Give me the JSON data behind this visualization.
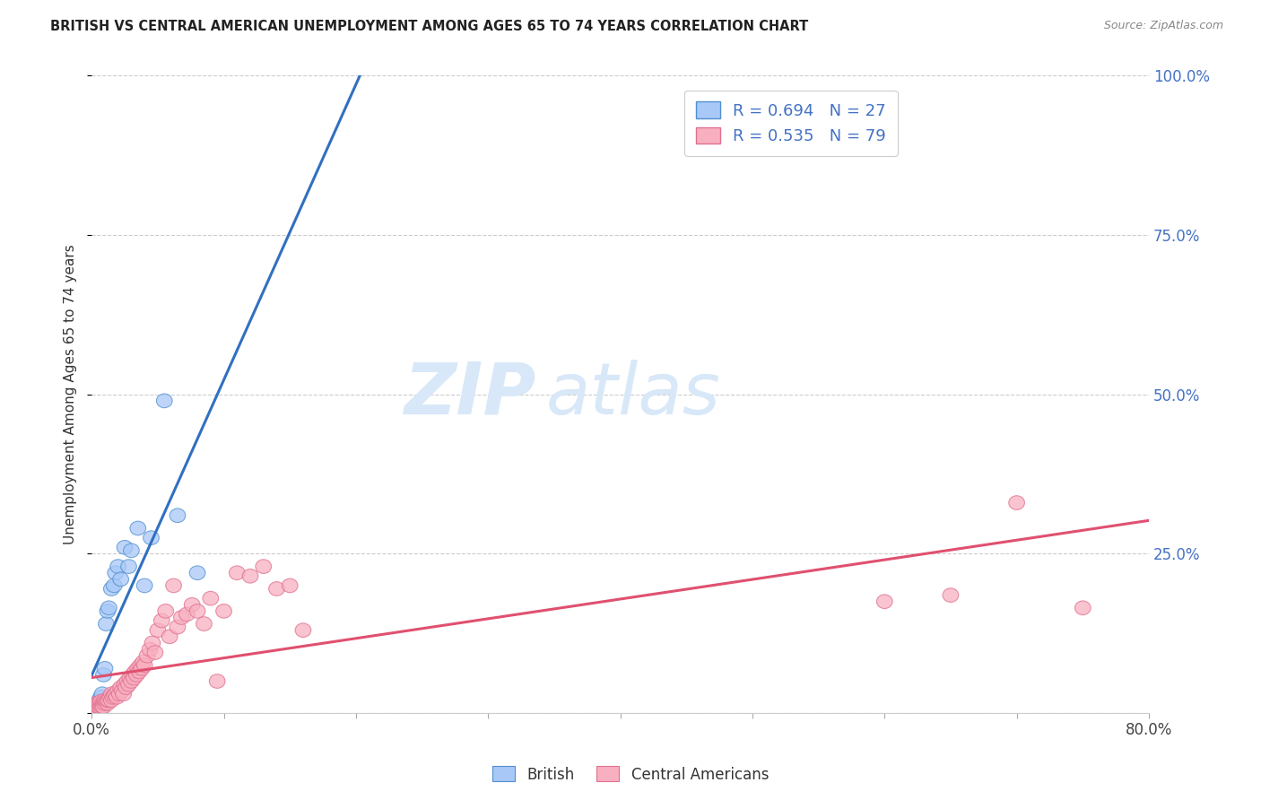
{
  "title": "BRITISH VS CENTRAL AMERICAN UNEMPLOYMENT AMONG AGES 65 TO 74 YEARS CORRELATION CHART",
  "source": "Source: ZipAtlas.com",
  "ylabel": "Unemployment Among Ages 65 to 74 years",
  "xmin": 0.0,
  "xmax": 0.8,
  "ymin": 0.0,
  "ymax": 1.0,
  "british_color": "#a8c8f8",
  "british_edge_color": "#5090d0",
  "ca_color": "#f8b0c0",
  "ca_edge_color": "#e07090",
  "regression_blue": "#3070c0",
  "regression_pink": "#e05070",
  "british_R": 0.694,
  "british_N": 27,
  "ca_R": 0.535,
  "ca_N": 79,
  "watermark_zip": "ZIP",
  "watermark_atlas": "atlas",
  "watermark_color": "#d8e8f8",
  "british_x": [
    0.001,
    0.002,
    0.003,
    0.004,
    0.005,
    0.006,
    0.007,
    0.008,
    0.009,
    0.01,
    0.011,
    0.012,
    0.013,
    0.015,
    0.017,
    0.018,
    0.02,
    0.022,
    0.025,
    0.028,
    0.03,
    0.035,
    0.04,
    0.045,
    0.055,
    0.065,
    0.08
  ],
  "british_y": [
    0.005,
    0.008,
    0.012,
    0.015,
    0.018,
    0.02,
    0.025,
    0.03,
    0.06,
    0.07,
    0.14,
    0.16,
    0.165,
    0.195,
    0.2,
    0.22,
    0.23,
    0.21,
    0.26,
    0.23,
    0.255,
    0.29,
    0.2,
    0.275,
    0.49,
    0.31,
    0.22
  ],
  "ca_x": [
    0.001,
    0.002,
    0.002,
    0.003,
    0.003,
    0.004,
    0.004,
    0.005,
    0.005,
    0.006,
    0.006,
    0.007,
    0.007,
    0.008,
    0.008,
    0.009,
    0.009,
    0.01,
    0.01,
    0.011,
    0.012,
    0.012,
    0.013,
    0.014,
    0.015,
    0.015,
    0.016,
    0.017,
    0.018,
    0.019,
    0.02,
    0.021,
    0.022,
    0.023,
    0.024,
    0.025,
    0.026,
    0.027,
    0.028,
    0.029,
    0.03,
    0.031,
    0.032,
    0.033,
    0.034,
    0.035,
    0.036,
    0.037,
    0.038,
    0.039,
    0.04,
    0.042,
    0.044,
    0.046,
    0.048,
    0.05,
    0.053,
    0.056,
    0.059,
    0.062,
    0.065,
    0.068,
    0.072,
    0.076,
    0.08,
    0.085,
    0.09,
    0.095,
    0.1,
    0.11,
    0.12,
    0.13,
    0.14,
    0.15,
    0.16,
    0.6,
    0.65,
    0.7,
    0.75
  ],
  "ca_y": [
    0.005,
    0.008,
    0.012,
    0.01,
    0.015,
    0.008,
    0.012,
    0.01,
    0.015,
    0.01,
    0.015,
    0.012,
    0.018,
    0.015,
    0.01,
    0.015,
    0.01,
    0.015,
    0.02,
    0.018,
    0.015,
    0.02,
    0.02,
    0.025,
    0.02,
    0.03,
    0.025,
    0.028,
    0.03,
    0.025,
    0.035,
    0.03,
    0.04,
    0.035,
    0.03,
    0.045,
    0.04,
    0.05,
    0.045,
    0.055,
    0.05,
    0.06,
    0.055,
    0.065,
    0.06,
    0.07,
    0.065,
    0.075,
    0.07,
    0.08,
    0.075,
    0.09,
    0.1,
    0.11,
    0.095,
    0.13,
    0.145,
    0.16,
    0.12,
    0.2,
    0.135,
    0.15,
    0.155,
    0.17,
    0.16,
    0.14,
    0.18,
    0.05,
    0.16,
    0.22,
    0.215,
    0.23,
    0.195,
    0.2,
    0.13,
    0.175,
    0.185,
    0.33,
    0.165
  ]
}
